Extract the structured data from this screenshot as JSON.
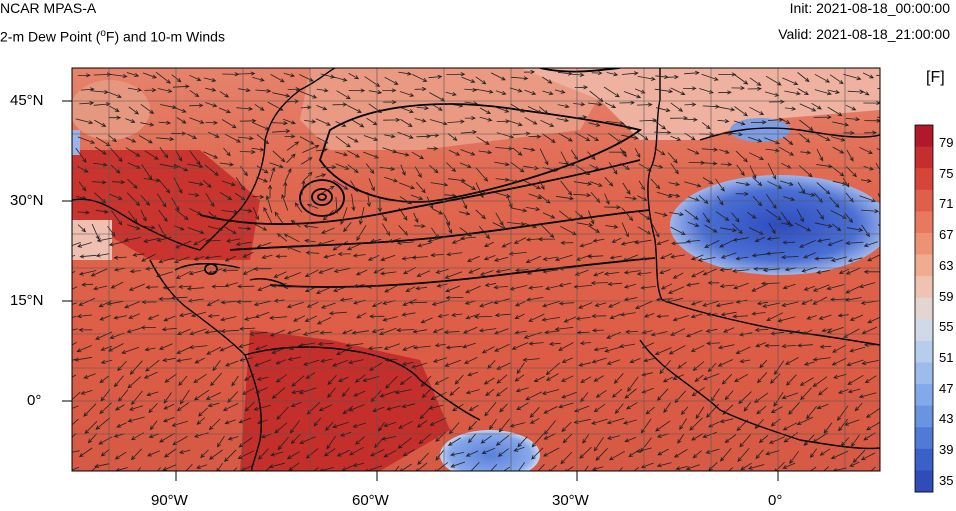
{
  "header": {
    "model": "NCAR MPAS-A",
    "field_title": "2-m Dew Point (",
    "field_unit_o": "o",
    "field_title_rest": "F) and 10-m Winds",
    "init": "Init: 2021-08-18_00:00:00",
    "valid": "Valid: 2021-08-18_21:00:00"
  },
  "colorbar": {
    "unit": "[F]",
    "labels": [
      "79",
      "75",
      "71",
      "67",
      "63",
      "59",
      "55",
      "51",
      "47",
      "43",
      "39",
      "35"
    ],
    "colors": [
      "#b2182b",
      "#c62d2e",
      "#d6453a",
      "#e05f4a",
      "#e8785e",
      "#ee9275",
      "#f0ab93",
      "#eec3b3",
      "#e3d6d2",
      "#cfd9e8",
      "#b6cdee",
      "#9dbcee",
      "#84a9ea",
      "#6a93e2",
      "#517ad6",
      "#3b61c8",
      "#2f4cb8"
    ]
  },
  "axes": {
    "lat_labels": [
      "45°N",
      "30°N",
      "15°N",
      "0°"
    ],
    "lon_labels": [
      "90°W",
      "60°W",
      "30°W",
      "0°"
    ]
  }
}
